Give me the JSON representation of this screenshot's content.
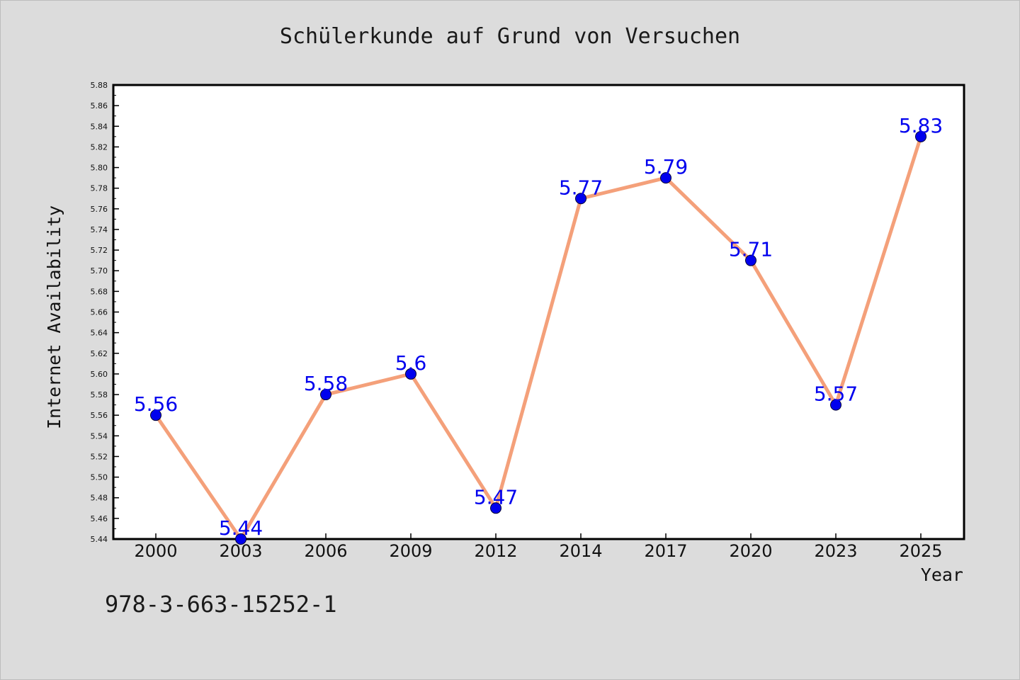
{
  "chart_data": {
    "type": "line",
    "title": "Schülerkunde auf Grund von Versuchen",
    "xlabel": "Year",
    "ylabel": "Internet Availability",
    "categories": [
      "2000",
      "2003",
      "2006",
      "2009",
      "2012",
      "2014",
      "2017",
      "2020",
      "2023",
      "2025"
    ],
    "series": [
      {
        "values": [
          5.56,
          5.44,
          5.58,
          5.6,
          5.47,
          5.77,
          5.79,
          5.71,
          5.57,
          5.83
        ],
        "data_labels": [
          "5.56",
          "5.44",
          "5.58",
          "5.6",
          "5.47",
          "5.77",
          "5.79",
          "5.71",
          "5.57",
          "5.83"
        ],
        "line_color": "#f4a07a",
        "marker_color": "#0000ee",
        "label_color": "#0000ee"
      }
    ],
    "ylim": [
      5.44,
      5.88
    ],
    "yticks": [
      "5.44",
      "5.46",
      "5.48",
      "5.50",
      "5.52",
      "5.54",
      "5.56",
      "5.58",
      "5.60",
      "5.62",
      "5.64",
      "5.66",
      "5.68",
      "5.70",
      "5.72",
      "5.74",
      "5.76",
      "5.78",
      "5.80",
      "5.82",
      "5.84",
      "5.86",
      "5.88"
    ],
    "grid": false,
    "legend": "none"
  },
  "footer": {
    "code": "978-3-663-15252-1"
  },
  "colors": {
    "background": "#dcdcdc",
    "plot_area": "#ffffff",
    "axis": "#000000"
  }
}
